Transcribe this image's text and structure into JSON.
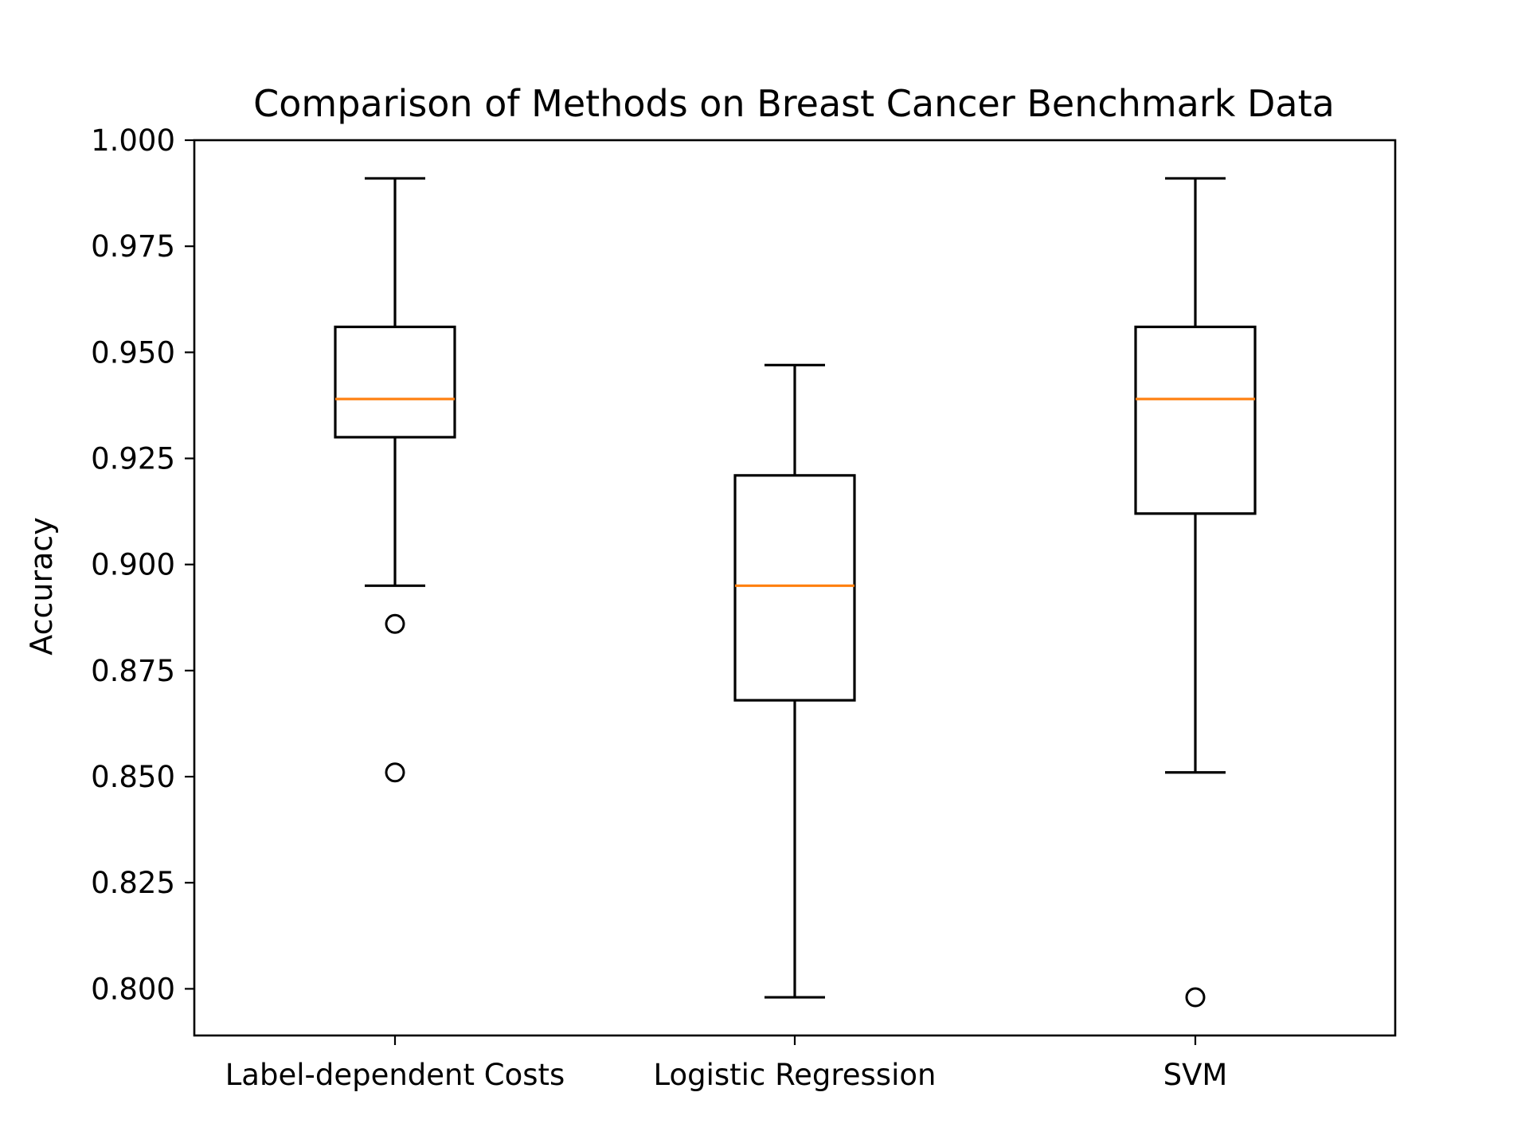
{
  "chart_data": {
    "type": "box",
    "title": "Comparison of Methods on Breast Cancer Benchmark Data",
    "ylabel": "Accuracy",
    "xlabel": "",
    "ylim": [
      0.789,
      1.0
    ],
    "yticks": [
      0.8,
      0.825,
      0.85,
      0.875,
      0.9,
      0.925,
      0.95,
      0.975,
      1.0
    ],
    "ytick_labels": [
      "0.800",
      "0.825",
      "0.850",
      "0.875",
      "0.900",
      "0.925",
      "0.950",
      "0.975",
      "1.000"
    ],
    "categories": [
      "Label-dependent Costs",
      "Logistic Regression",
      "SVM"
    ],
    "grid": false,
    "series": [
      {
        "category": "Label-dependent Costs",
        "whisker_low": 0.895,
        "q1": 0.93,
        "median": 0.939,
        "q3": 0.956,
        "whisker_high": 0.991,
        "outliers": [
          0.886,
          0.851
        ]
      },
      {
        "category": "Logistic Regression",
        "whisker_low": 0.798,
        "q1": 0.868,
        "median": 0.895,
        "q3": 0.921,
        "whisker_high": 0.947,
        "outliers": []
      },
      {
        "category": "SVM",
        "whisker_low": 0.851,
        "q1": 0.912,
        "median": 0.939,
        "q3": 0.956,
        "whisker_high": 0.991,
        "outliers": [
          0.798
        ]
      }
    ],
    "colors": {
      "box": "#000000",
      "median": "#ff7f0e",
      "outlier": "#000000"
    }
  }
}
